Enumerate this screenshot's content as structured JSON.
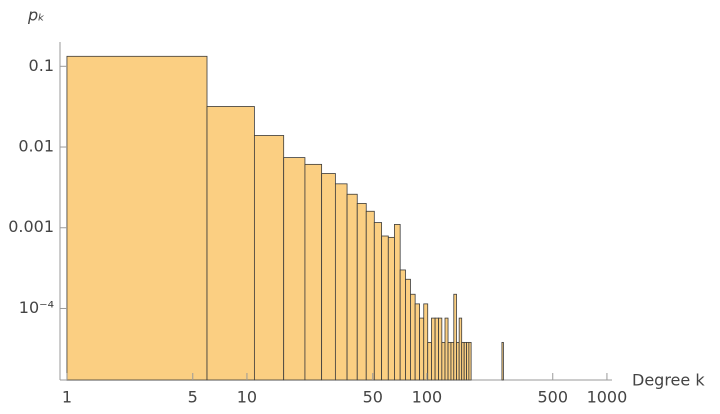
{
  "chart_data": {
    "type": "histogram",
    "x_label": "Degree k",
    "y_label": "pₖ",
    "bins": [
      1,
      6,
      11,
      16,
      21,
      26,
      31,
      36,
      41,
      46,
      51,
      56,
      61,
      66,
      71,
      76,
      81,
      86,
      91,
      96,
      101,
      106,
      111,
      116,
      121,
      126,
      131,
      136,
      141,
      146,
      151,
      156,
      161,
      166,
      171,
      176,
      181,
      186,
      191,
      196,
      201,
      206,
      211,
      216,
      221,
      226,
      231,
      236,
      241,
      246,
      251,
      256,
      261,
      266
    ],
    "values": [
      0.133,
      0.0318,
      0.0139,
      0.0074,
      0.0061,
      0.0047,
      0.0035,
      0.0026,
      0.002,
      0.0016,
      0.00116,
      0.00079,
      0.00076,
      0.0011,
      0.0003,
      0.00023,
      0.00015,
      0.000114,
      7.6e-05,
      0.000114,
      3.8e-05,
      7.6e-05,
      7.6e-05,
      7.6e-05,
      3.8e-05,
      7.6e-05,
      3.8e-05,
      3.8e-05,
      0.00015,
      3.8e-05,
      7.6e-05,
      3.8e-05,
      3.8e-05,
      3.8e-05,
      3.8e-05,
      0,
      0,
      0,
      0,
      0,
      0,
      0,
      0,
      0,
      0,
      0,
      0,
      0,
      0,
      0,
      0,
      0,
      3.8e-05
    ],
    "color": "#fbcf82",
    "xscale": "log",
    "yscale": "log",
    "xlim": [
      0.915,
      1040
    ],
    "ylim": [
      1.3e-05,
      0.2
    ],
    "xticks": [
      1,
      5,
      10,
      50,
      100,
      500,
      1000
    ],
    "yticks": [
      0.1,
      0.01,
      0.001,
      {
        "value": 0.0001,
        "label": "10⁻⁴"
      }
    ]
  }
}
